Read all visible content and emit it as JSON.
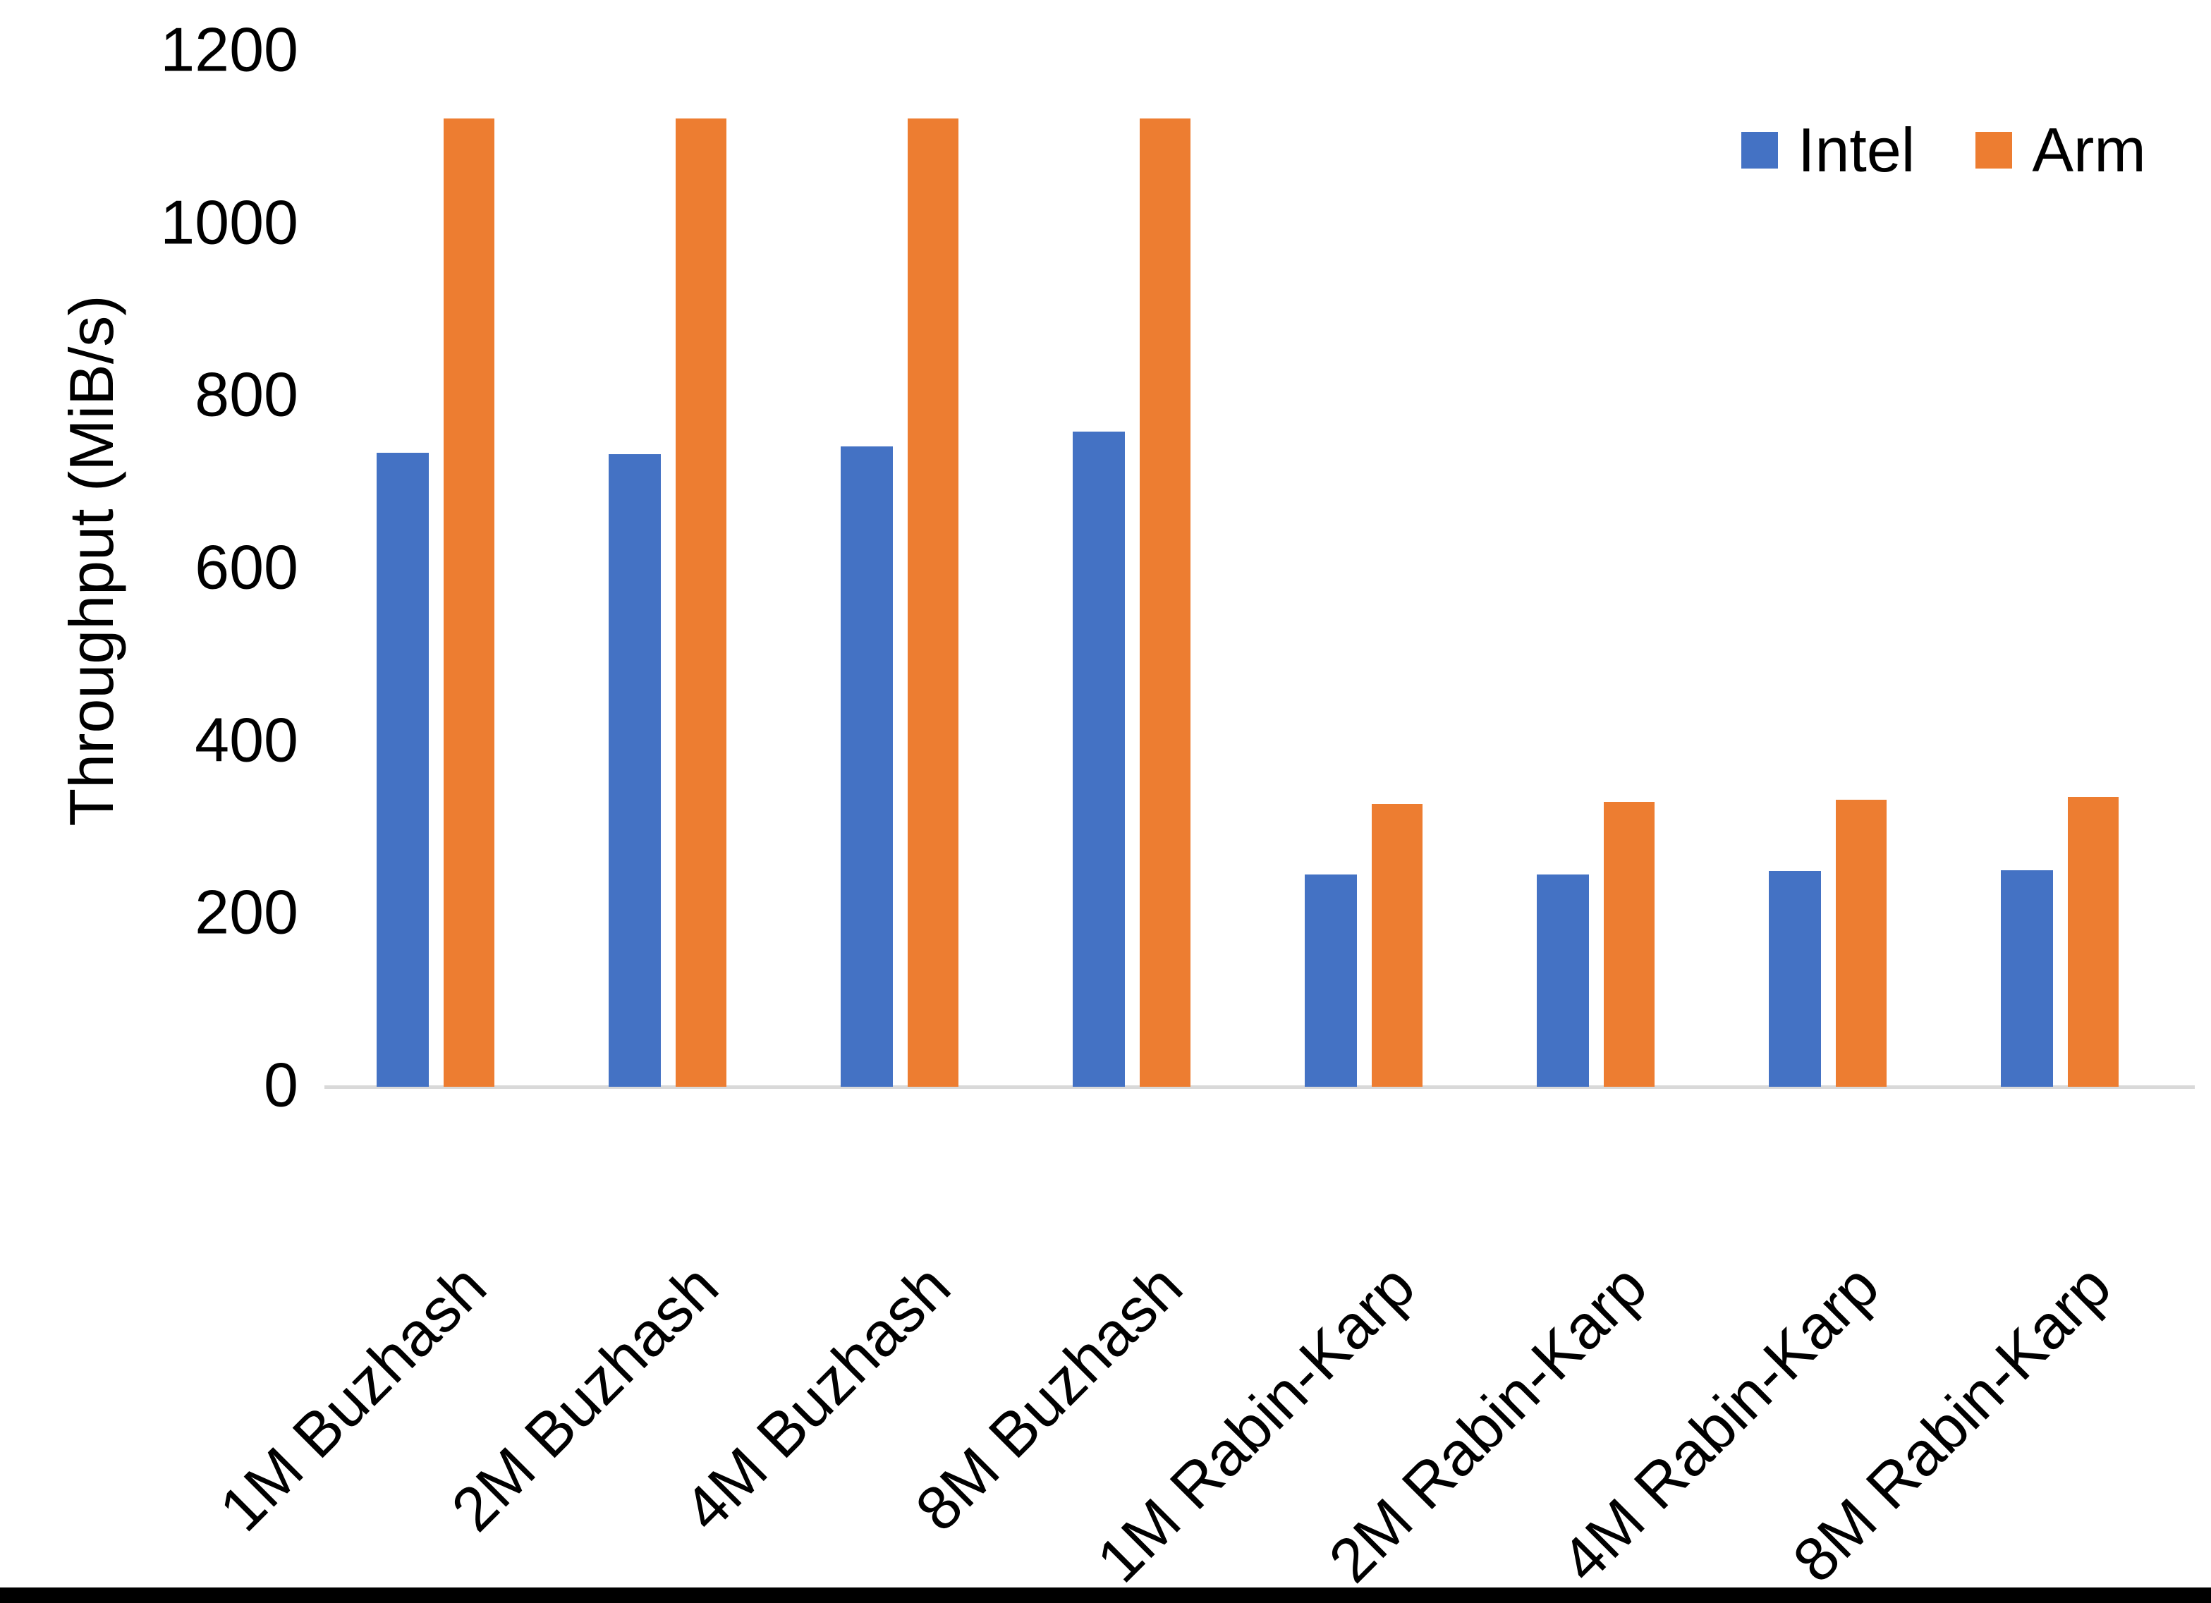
{
  "chart_data": {
    "type": "bar",
    "title": "",
    "xlabel": "",
    "ylabel": "Throughput (MiB/s)",
    "categories": [
      "1M Buzhash",
      "2M Buzhash",
      "4M Buzhash",
      "8M Buzhash",
      "1M Rabin-Karp",
      "2M Rabin-Karp",
      "4M Rabin-Karp",
      "8M Rabin-Karp"
    ],
    "series": [
      {
        "name": "Intel",
        "color": "#4472C4",
        "values": [
          735,
          733,
          742,
          759,
          246,
          246,
          250,
          251
        ]
      },
      {
        "name": "Arm",
        "color": "#ED7D31",
        "values": [
          1122,
          1122,
          1122,
          1122,
          328,
          330,
          333,
          336
        ]
      }
    ],
    "ylim": [
      0,
      1200
    ],
    "yticks": [
      0,
      200,
      400,
      600,
      800,
      1000,
      1200
    ],
    "grid": false,
    "legend_position": "top-right",
    "axis_line_color": "#D9D9D9",
    "text_color": "#000000",
    "background_color": "#FFFFFF",
    "bottom_border_color": "#000000"
  }
}
